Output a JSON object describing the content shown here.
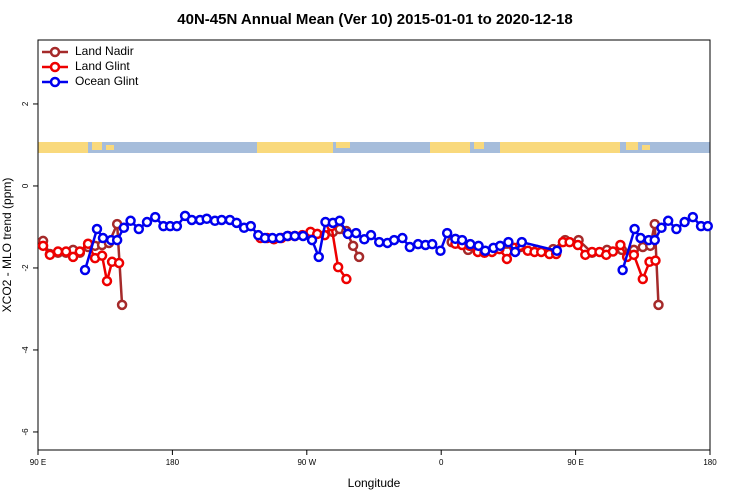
{
  "chart_data": {
    "type": "line",
    "title": "40N-45N Annual Mean (Ver 10)   2015-01-01 to 2020-12-18",
    "x_label": "Longitude",
    "y_label": "XCO2 - MLO trend (ppm)",
    "xlim": [
      90,
      540
    ],
    "ylim": [
      -6.44,
      3.56
    ],
    "xticks": [
      {
        "value": 90,
        "label": "90 E"
      },
      180,
      {
        "value": 270,
        "label": "90 W"
      },
      {
        "value": 360,
        "label": "0"
      },
      {
        "value": 450,
        "label": "90 E"
      },
      {
        "value": 540,
        "label": "180"
      }
    ],
    "yticks": [
      -6,
      -4,
      -2,
      0,
      2
    ],
    "grid": false,
    "legend": "top-left",
    "series": [
      {
        "name": "Land Nadir",
        "color": "#a52a2a",
        "x": [
          93.4,
          98,
          103.4,
          108.8,
          113.5,
          118,
          123.5,
          128.2,
          132.9,
          137.5,
          143,
          146.3,
          null,
          287.5,
          292,
          296.5,
          301,
          305,
          null,
          367,
          378,
          387,
          398,
          413,
          424,
          435,
          443,
          452,
          461,
          471,
          481,
          489,
          495,
          500,
          503,
          505.5
        ],
        "values": [
          -1.34,
          -1.66,
          -1.63,
          -1.63,
          -1.56,
          -1.63,
          -1.49,
          -1.46,
          -1.44,
          -1.39,
          -0.93,
          -2.9,
          null,
          -1.12,
          -1.05,
          -1.1,
          -1.46,
          -1.73,
          null,
          -1.37,
          -1.56,
          -1.58,
          -1.51,
          -1.49,
          -1.56,
          -1.54,
          -1.32,
          -1.32,
          -1.63,
          -1.56,
          -1.56,
          -1.56,
          -1.49,
          -1.46,
          -0.93,
          -2.9
        ]
      },
      {
        "name": "Land Glint",
        "color": "#ee0000",
        "x": [
          93.4,
          98,
          103.4,
          108.8,
          113.5,
          118,
          123.5,
          128.2,
          132.9,
          136.2,
          139.6,
          144.3,
          null,
          239,
          243.5,
          248,
          253,
          257.5,
          262,
          267,
          272.5,
          277,
          282,
          286.5,
          291,
          296.5,
          null,
          369.5,
          374,
          379,
          384.5,
          389,
          394,
          399,
          404,
          409,
          413,
          418,
          422.5,
          427,
          432.5,
          437,
          441.5,
          446,
          451.5,
          456.5,
          461,
          466,
          470.5,
          475,
          480,
          484.5,
          489,
          495,
          499.5,
          503.5
        ],
        "values": [
          -1.46,
          -1.68,
          -1.6,
          -1.6,
          -1.73,
          -1.6,
          -1.41,
          -1.76,
          -1.7,
          -2.32,
          -1.85,
          -1.88,
          null,
          -1.27,
          -1.27,
          -1.3,
          -1.27,
          -1.22,
          -1.22,
          -1.2,
          -1.12,
          -1.17,
          -1.2,
          -0.98,
          -1.98,
          -2.27,
          null,
          -1.41,
          -1.44,
          -1.46,
          -1.61,
          -1.63,
          -1.61,
          -1.54,
          -1.78,
          -1.51,
          -1.46,
          -1.58,
          -1.61,
          -1.61,
          -1.66,
          -1.66,
          -1.37,
          -1.37,
          -1.44,
          -1.68,
          -1.61,
          -1.61,
          -1.68,
          -1.6,
          -1.44,
          -1.73,
          -1.68,
          -2.27,
          -1.85,
          -1.82
        ]
      },
      {
        "name": "Ocean Glint",
        "color": "#0000ee",
        "x": [
          121.5,
          129.5,
          133.5,
          139,
          143,
          147.5,
          152,
          157.5,
          163,
          168.5,
          174,
          178.5,
          183,
          188.5,
          193,
          198.5,
          203,
          208.5,
          213,
          218.5,
          223,
          228,
          232.5,
          237.5,
          242,
          247,
          252,
          257,
          262,
          267.5,
          273.5,
          278,
          282.5,
          287.5,
          292,
          297.5,
          303,
          308.5,
          313,
          318.5,
          324,
          328.5,
          334,
          339,
          344.5,
          349.5,
          354,
          359.5,
          364,
          369.5,
          374,
          379.5,
          385,
          389.5,
          395,
          399.5,
          405,
          409.5,
          414,
          437.5,
          null,
          481.5,
          489.5,
          493.5,
          499,
          503,
          507.5,
          512,
          517.5,
          523,
          528.5,
          534,
          538.5
        ],
        "values": [
          -2.05,
          -1.05,
          -1.27,
          -1.32,
          -1.32,
          -1.02,
          -0.85,
          -1.05,
          -0.88,
          -0.76,
          -0.98,
          -0.98,
          -0.98,
          -0.73,
          -0.83,
          -0.83,
          -0.8,
          -0.85,
          -0.83,
          -0.83,
          -0.9,
          -1.02,
          -0.98,
          -1.2,
          -1.27,
          -1.27,
          -1.27,
          -1.22,
          -1.22,
          -1.22,
          -1.32,
          -1.73,
          -0.88,
          -0.9,
          -0.85,
          -1.17,
          -1.15,
          -1.3,
          -1.2,
          -1.37,
          -1.39,
          -1.32,
          -1.27,
          -1.49,
          -1.42,
          -1.44,
          -1.42,
          -1.58,
          -1.15,
          -1.29,
          -1.32,
          -1.42,
          -1.46,
          -1.58,
          -1.51,
          -1.46,
          -1.37,
          -1.61,
          -1.37,
          -1.58,
          null,
          -2.05,
          -1.05,
          -1.27,
          -1.32,
          -1.32,
          -1.02,
          -0.85,
          -1.05,
          -0.88,
          -0.76,
          -0.98,
          -0.98
        ]
      }
    ]
  }
}
